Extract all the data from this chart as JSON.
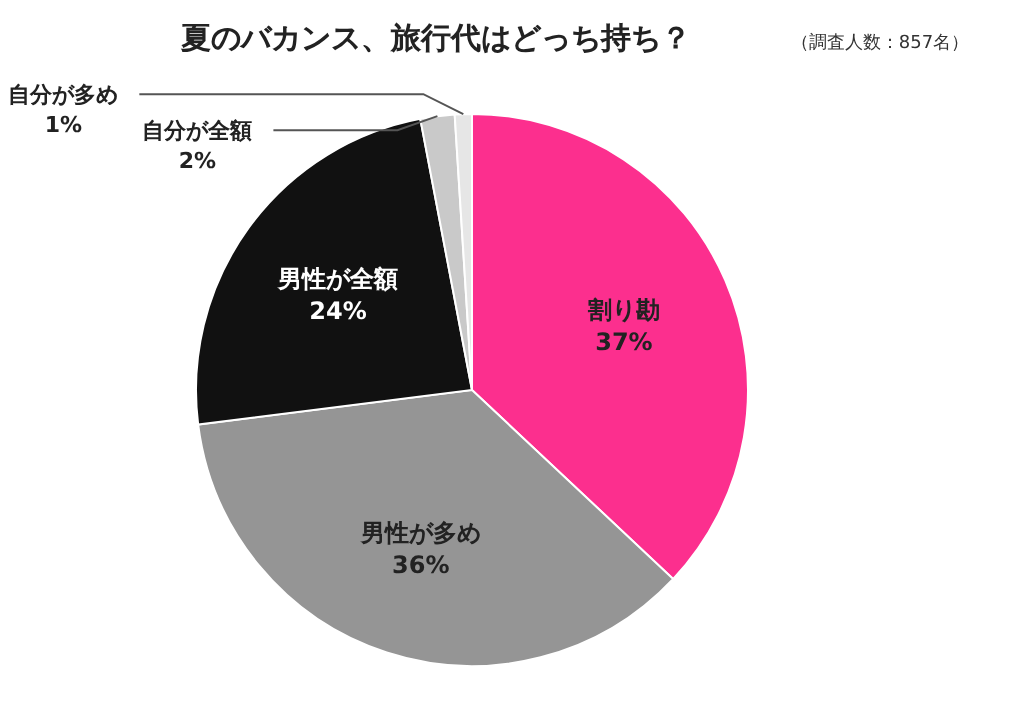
{
  "chart_data": {
    "type": "pie",
    "title": "夏のバカンス、旅行代はどっち持ち？",
    "subtitle": "（調査人数：857名）",
    "categories": [
      "割り勘",
      "男性が多め",
      "男性が全額",
      "自分が全額",
      "自分が多め"
    ],
    "values": [
      37,
      36,
      24,
      2,
      1
    ],
    "value_labels": [
      "37%",
      "36%",
      "24%",
      "2%",
      "1%"
    ],
    "colors": [
      "#fc2f8e",
      "#959595",
      "#111111",
      "#c9c9c9",
      "#e6e6e6"
    ],
    "legend": false
  }
}
